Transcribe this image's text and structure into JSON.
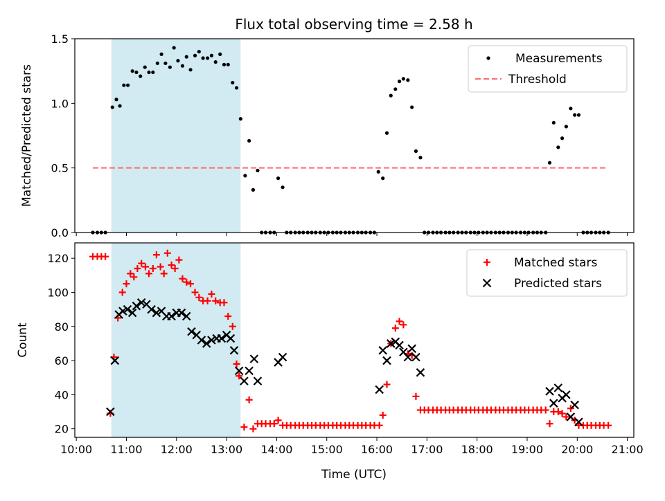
{
  "chart_data": [
    {
      "type": "scatter",
      "title": "Flux total observing time = 2.58 h",
      "xlabel": "",
      "ylabel": "Matched/Predicted stars",
      "xlim": [
        9.97,
        21.13
      ],
      "ylim": [
        0,
        1.5
      ],
      "yticks": [
        0,
        0.5,
        1.0,
        1.5
      ],
      "ytick_labels": [
        "0.0",
        "0.5",
        "1.0",
        "1.5"
      ],
      "xticks": [
        10,
        11,
        12,
        13,
        14,
        15,
        16,
        17,
        18,
        19,
        20,
        21
      ],
      "shaded_region": {
        "x": [
          10.7,
          13.28
        ],
        "color": "#add8e6"
      },
      "legend": {
        "position": "upper right",
        "entries": [
          "Measurements",
          "Threshold"
        ]
      },
      "series": [
        {
          "name": "Measurements",
          "marker": "dot",
          "color": "#000000",
          "x": [
            10.33,
            10.42,
            10.5,
            10.58,
            10.72,
            10.8,
            10.87,
            10.95,
            11.03,
            11.12,
            11.2,
            11.28,
            11.37,
            11.45,
            11.53,
            11.62,
            11.7,
            11.78,
            11.87,
            11.95,
            12.03,
            12.12,
            12.2,
            12.28,
            12.37,
            12.45,
            12.53,
            12.62,
            12.7,
            12.78,
            12.87,
            12.95,
            13.03,
            13.12,
            13.2,
            13.28,
            13.37,
            13.45,
            13.53,
            13.62,
            13.7,
            13.78,
            13.87,
            13.95,
            14.03,
            14.12,
            14.2,
            14.28,
            14.37,
            14.45,
            14.53,
            14.62,
            14.7,
            14.78,
            14.87,
            14.95,
            15.03,
            15.12,
            15.2,
            15.28,
            15.37,
            15.45,
            15.53,
            15.62,
            15.7,
            15.78,
            15.87,
            15.95,
            16.03,
            16.12,
            16.2,
            16.28,
            16.37,
            16.45,
            16.53,
            16.62,
            16.7,
            16.78,
            16.87,
            16.95,
            17.03,
            17.12,
            17.2,
            17.28,
            17.37,
            17.45,
            17.53,
            17.62,
            17.7,
            17.78,
            17.87,
            17.95,
            18.03,
            18.12,
            18.2,
            18.28,
            18.37,
            18.45,
            18.53,
            18.62,
            18.7,
            18.78,
            18.87,
            18.95,
            19.03,
            19.12,
            19.2,
            19.28,
            19.37,
            19.45,
            19.53,
            19.62,
            19.7,
            19.78,
            19.87,
            19.95,
            20.03,
            20.12,
            20.2,
            20.28,
            20.37,
            20.45,
            20.53,
            20.62
          ],
          "y": [
            0,
            0,
            0,
            0,
            0.97,
            1.03,
            0.98,
            1.14,
            1.14,
            1.25,
            1.24,
            1.21,
            1.28,
            1.24,
            1.24,
            1.31,
            1.38,
            1.31,
            1.28,
            1.43,
            1.33,
            1.29,
            1.36,
            1.26,
            1.37,
            1.4,
            1.35,
            1.35,
            1.37,
            1.32,
            1.38,
            1.3,
            1.3,
            1.16,
            1.12,
            0.88,
            0.44,
            0.71,
            0.33,
            0.48,
            0,
            0,
            0,
            0,
            0.42,
            0.35,
            0,
            0,
            0,
            0,
            0,
            0,
            0,
            0,
            0,
            0,
            0,
            0,
            0,
            0,
            0,
            0,
            0,
            0,
            0,
            0,
            0,
            0,
            0.47,
            0.42,
            0.77,
            1.06,
            1.11,
            1.17,
            1.19,
            1.18,
            0.97,
            0.63,
            0.58,
            0,
            0,
            0,
            0,
            0,
            0,
            0,
            0,
            0,
            0,
            0,
            0,
            0,
            0,
            0,
            0,
            0,
            0,
            0,
            0,
            0,
            0,
            0,
            0,
            0,
            0,
            0,
            0,
            0,
            0,
            0.54,
            0.85,
            0.66,
            0.73,
            0.82,
            0.96,
            0.91,
            0.91,
            0,
            0,
            0,
            0,
            0,
            0,
            0
          ]
        },
        {
          "name": "Threshold",
          "style": "dashed",
          "color": "#ff6b6b",
          "x": [
            10.33,
            20.62
          ],
          "y": [
            0.5,
            0.5
          ]
        }
      ]
    },
    {
      "type": "scatter",
      "title": "",
      "xlabel": "Time (UTC)",
      "ylabel": "Count",
      "xlim": [
        9.97,
        21.13
      ],
      "ylim": [
        15,
        129
      ],
      "yticks": [
        20,
        40,
        60,
        80,
        100,
        120
      ],
      "xticks": [
        10,
        11,
        12,
        13,
        14,
        15,
        16,
        17,
        18,
        19,
        20,
        21
      ],
      "xtick_labels": [
        "10:00",
        "11:00",
        "12:00",
        "13:00",
        "14:00",
        "15:00",
        "16:00",
        "17:00",
        "18:00",
        "19:00",
        "20:00",
        "21:00"
      ],
      "shaded_region": {
        "x": [
          10.7,
          13.28
        ],
        "color": "#add8e6"
      },
      "legend": {
        "position": "upper right",
        "entries": [
          "Matched stars",
          "Predicted stars"
        ]
      },
      "series": [
        {
          "name": "Matched stars",
          "marker": "plus",
          "color": "#ff0000",
          "x": [
            10.33,
            10.42,
            10.5,
            10.58,
            10.68,
            10.75,
            10.83,
            10.92,
            11.0,
            11.08,
            11.15,
            11.22,
            11.3,
            11.38,
            11.45,
            11.53,
            11.6,
            11.68,
            11.75,
            11.82,
            11.9,
            11.97,
            12.05,
            12.12,
            12.2,
            12.28,
            12.37,
            12.45,
            12.53,
            12.62,
            12.7,
            12.78,
            12.87,
            12.95,
            13.03,
            13.12,
            13.2,
            13.25,
            13.35,
            13.45,
            13.53,
            13.62,
            13.7,
            13.78,
            13.87,
            13.95,
            14.03,
            14.12,
            14.2,
            14.28,
            14.37,
            14.45,
            14.53,
            14.62,
            14.7,
            14.78,
            14.87,
            14.95,
            15.03,
            15.12,
            15.2,
            15.28,
            15.37,
            15.45,
            15.53,
            15.62,
            15.7,
            15.78,
            15.87,
            15.95,
            16.05,
            16.12,
            16.2,
            16.28,
            16.37,
            16.45,
            16.53,
            16.62,
            16.7,
            16.78,
            16.87,
            16.95,
            17.03,
            17.12,
            17.2,
            17.28,
            17.37,
            17.45,
            17.53,
            17.62,
            17.7,
            17.78,
            17.87,
            17.95,
            18.03,
            18.12,
            18.2,
            18.28,
            18.37,
            18.45,
            18.53,
            18.62,
            18.7,
            18.78,
            18.87,
            18.95,
            19.03,
            19.12,
            19.2,
            19.28,
            19.37,
            19.45,
            19.53,
            19.62,
            19.7,
            19.78,
            19.87,
            19.95,
            20.03,
            20.12,
            20.2,
            20.28,
            20.37,
            20.45,
            20.53,
            20.62
          ],
          "y": [
            121,
            121,
            121,
            121,
            29,
            62,
            85,
            100,
            105,
            111,
            109,
            114,
            117,
            115,
            111,
            114,
            122,
            115,
            111,
            123,
            116,
            114,
            119,
            108,
            106,
            105,
            100,
            97,
            95,
            95,
            99,
            95,
            94,
            94,
            86,
            80,
            58,
            51,
            21,
            37,
            20,
            23,
            23,
            23,
            23,
            23,
            25,
            22,
            22,
            22,
            22,
            22,
            22,
            22,
            22,
            22,
            22,
            22,
            22,
            22,
            22,
            22,
            22,
            22,
            22,
            22,
            22,
            22,
            22,
            22,
            22,
            28,
            46,
            70,
            79,
            83,
            81,
            64,
            63,
            39,
            31,
            31,
            31,
            31,
            31,
            31,
            31,
            31,
            31,
            31,
            31,
            31,
            31,
            31,
            31,
            31,
            31,
            31,
            31,
            31,
            31,
            31,
            31,
            31,
            31,
            31,
            31,
            31,
            31,
            31,
            31,
            23,
            30,
            30,
            29,
            27,
            32,
            25,
            22,
            22,
            22,
            22,
            22,
            22,
            22,
            22
          ]
        },
        {
          "name": "Predicted stars",
          "marker": "x",
          "color": "#000000",
          "x": [
            10.68,
            10.77,
            10.85,
            10.93,
            11.02,
            11.12,
            11.2,
            11.3,
            11.4,
            11.5,
            11.6,
            11.7,
            11.8,
            11.9,
            12.0,
            12.1,
            12.2,
            12.3,
            12.4,
            12.5,
            12.6,
            12.7,
            12.8,
            12.9,
            13.0,
            13.08,
            13.15,
            13.25,
            13.35,
            13.45,
            13.55,
            13.62,
            14.03,
            14.12,
            16.05,
            16.12,
            16.2,
            16.28,
            16.37,
            16.45,
            16.53,
            16.62,
            16.7,
            16.78,
            16.87,
            19.45,
            19.53,
            19.62,
            19.7,
            19.78,
            19.87,
            19.95,
            20.03
          ],
          "y": [
            30,
            60,
            87,
            89,
            90,
            88,
            92,
            94,
            93,
            90,
            88,
            89,
            86,
            86,
            88,
            88,
            86,
            77,
            75,
            72,
            70,
            72,
            73,
            73,
            75,
            73,
            66,
            54,
            48,
            54,
            61,
            48,
            59,
            62,
            43,
            66,
            60,
            70,
            71,
            69,
            65,
            62,
            67,
            62,
            53,
            42,
            35,
            44,
            38,
            40,
            27,
            34,
            24
          ]
        }
      ]
    }
  ]
}
